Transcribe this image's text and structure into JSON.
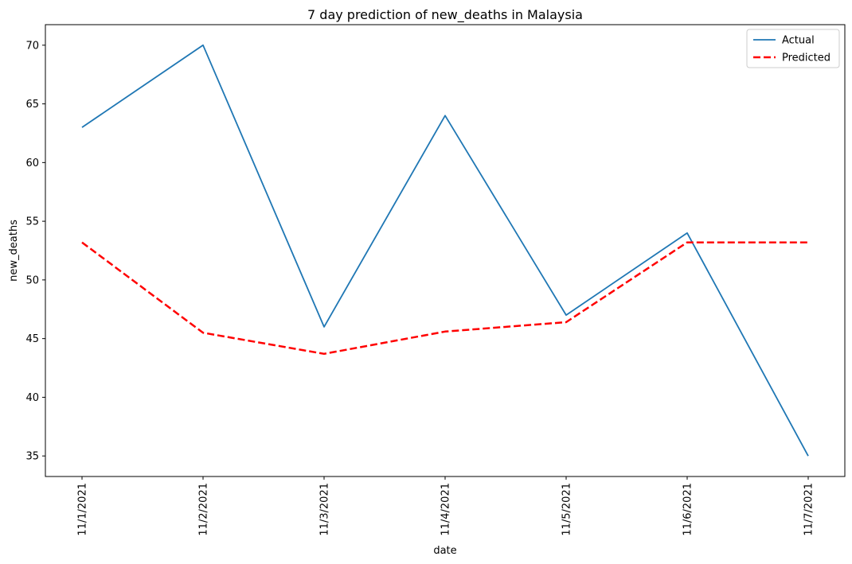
{
  "chart_data": {
    "type": "line",
    "title": "7 day prediction of new_deaths in Malaysia",
    "xlabel": "date",
    "ylabel": "new_deaths",
    "categories": [
      "11/1/2021",
      "11/2/2021",
      "11/3/2021",
      "11/4/2021",
      "11/5/2021",
      "11/6/2021",
      "11/7/2021"
    ],
    "ylim": [
      33.25,
      71.75
    ],
    "yticks": [
      35,
      40,
      45,
      50,
      55,
      60,
      65,
      70
    ],
    "grid": false,
    "legend_position": "top-right",
    "series": [
      {
        "name": "Actual",
        "values": [
          63,
          70,
          46,
          64,
          47,
          54,
          35
        ],
        "color": "#1f77b4",
        "style": "solid"
      },
      {
        "name": "Predicted",
        "values": [
          53.2,
          45.5,
          43.7,
          45.6,
          46.4,
          53.2,
          53.2
        ],
        "color": "#ff0000",
        "style": "dashed"
      }
    ]
  }
}
